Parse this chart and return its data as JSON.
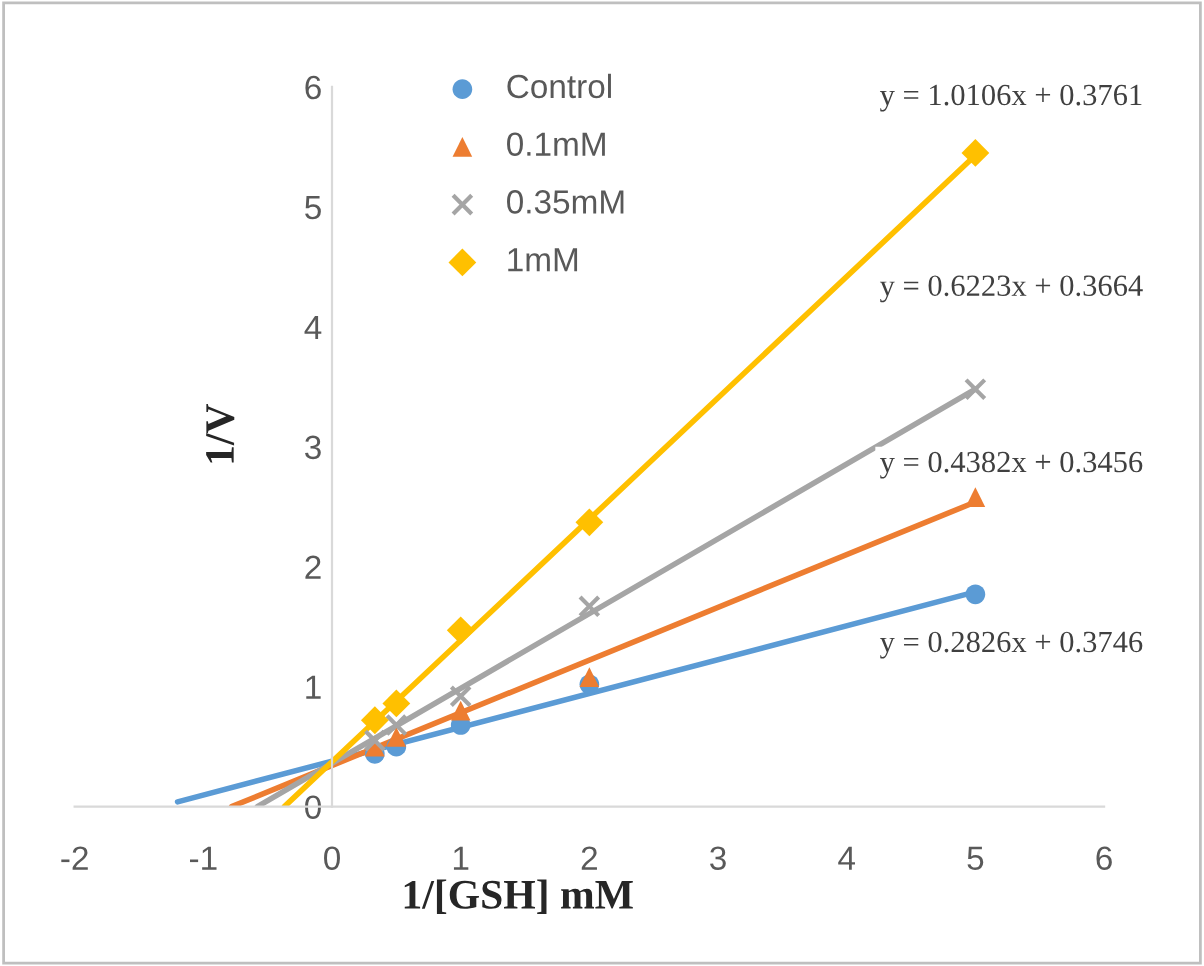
{
  "chart_data": {
    "type": "scatter",
    "xlabel": "1/[GSH] mM",
    "ylabel": "1/V",
    "xlim": [
      -2,
      6
    ],
    "xticks": [
      -2,
      -1,
      0,
      1,
      2,
      3,
      4,
      5,
      6
    ],
    "ylim": [
      0,
      6
    ],
    "yticks": [
      0,
      1,
      2,
      3,
      4,
      5,
      6
    ],
    "grid": false,
    "legend": "top",
    "series": [
      {
        "name": "Control",
        "color": "#5b9bd5",
        "marker": "circle",
        "x": [
          0.333,
          0.5,
          1,
          2,
          5
        ],
        "values": [
          0.44,
          0.5,
          0.68,
          1.02,
          1.77
        ]
      },
      {
        "name": "0.1mM",
        "color": "#ed7d31",
        "marker": "triangle",
        "x": [
          0.333,
          0.5,
          1,
          2,
          5
        ],
        "values": [
          0.5,
          0.58,
          0.8,
          1.08,
          2.58
        ]
      },
      {
        "name": "0.35mM",
        "color": "#a5a5a5",
        "marker": "cross",
        "x": [
          0.333,
          0.5,
          1,
          2,
          5
        ],
        "values": [
          0.55,
          0.68,
          0.92,
          1.67,
          3.48
        ]
      },
      {
        "name": "1mM",
        "color": "#ffc000",
        "marker": "diamond",
        "x": [
          0.333,
          0.5,
          1,
          2,
          5
        ],
        "values": [
          0.72,
          0.86,
          1.47,
          2.37,
          5.45
        ]
      },
      {
        "type": "line",
        "color": "#5b9bd5",
        "marker": "none",
        "x": [
          -1.2,
          5
        ],
        "values": [
          0.04,
          1.79
        ]
      },
      {
        "type": "line",
        "color": "#ed7d31",
        "marker": "none",
        "x": [
          -0.78,
          5
        ],
        "values": [
          0.0,
          2.54
        ]
      },
      {
        "type": "line",
        "color": "#a5a5a5",
        "marker": "none",
        "x": [
          -0.58,
          5
        ],
        "values": [
          0.0,
          3.48
        ]
      },
      {
        "type": "line",
        "color": "#ffc000",
        "marker": "none",
        "x": [
          -0.37,
          5
        ],
        "values": [
          0.0,
          5.43
        ]
      }
    ],
    "annotations": [
      "y = 1.0106x + 0.3761",
      "y = 0.6223x + 0.3664",
      "y = 0.4382x + 0.3456",
      "y = 0.2826x + 0.3746"
    ]
  }
}
